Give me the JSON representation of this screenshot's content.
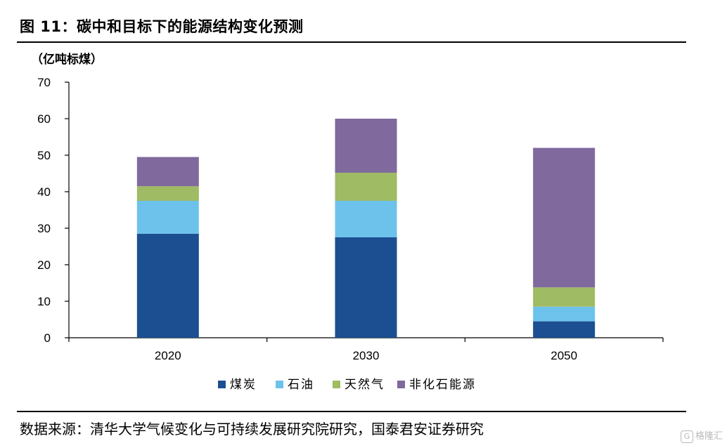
{
  "figure": {
    "title": "图 11：碳中和目标下的能源结构变化预测",
    "source": "数据来源：清华大学气候变化与可持续发展研究院研究，国泰君安证券研究",
    "watermark_icon": "G",
    "watermark": "格隆汇"
  },
  "chart_data": {
    "type": "bar",
    "stacked": true,
    "unit_label": "（亿吨标煤）",
    "categories": [
      "2020",
      "2030",
      "2050"
    ],
    "ylim": [
      0,
      70
    ],
    "yticks": [
      0,
      10,
      20,
      30,
      40,
      50,
      60,
      70
    ],
    "grid": false,
    "legend_position": "bottom",
    "series": [
      {
        "name": "煤炭",
        "color": "#1c4f91",
        "values": [
          28.5,
          27.5,
          4.5
        ]
      },
      {
        "name": "石油",
        "color": "#6dc2ec",
        "values": [
          9.0,
          10.0,
          4.0
        ]
      },
      {
        "name": "天然气",
        "color": "#9fbb63",
        "values": [
          4.0,
          7.7,
          5.3
        ]
      },
      {
        "name": "非化石能源",
        "color": "#7f699d",
        "values": [
          8.0,
          14.8,
          38.2
        ]
      }
    ]
  }
}
